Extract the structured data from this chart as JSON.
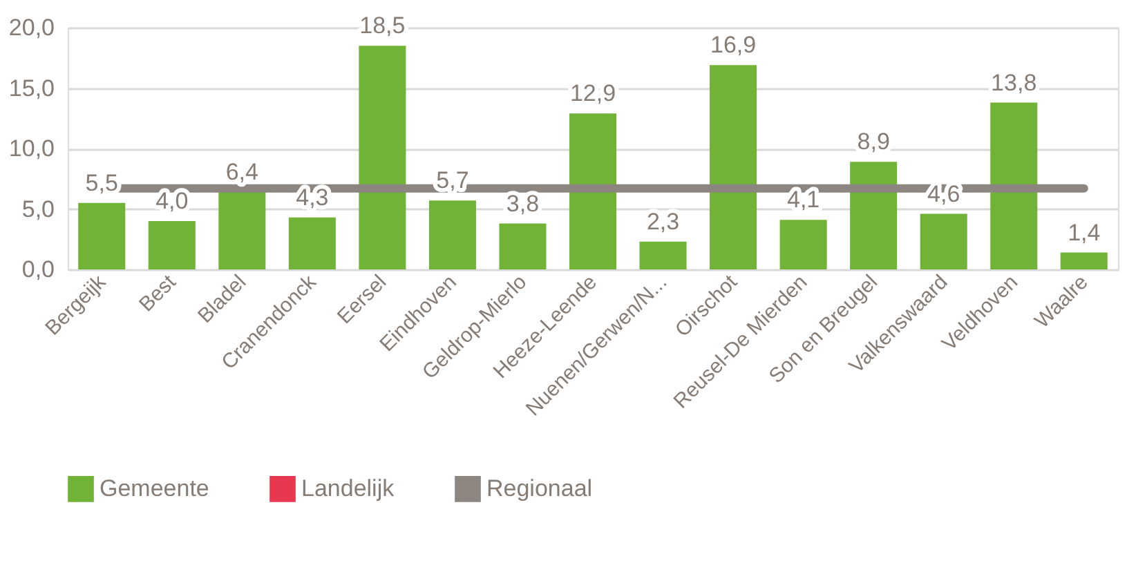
{
  "chart_data": {
    "type": "bar",
    "categories": [
      "Bergeijk",
      "Best",
      "Bladel",
      "Cranendonck",
      "Eersel",
      "Eindhoven",
      "Geldrop-Mierlo",
      "Heeze-Leende",
      "Nuenen/Gerwen/N...",
      "Oirschot",
      "Reusel-De Mierden",
      "Son en Breugel",
      "Valkenswaard",
      "Veldhoven",
      "Waalre"
    ],
    "series": [
      {
        "name": "Gemeente",
        "color": "#70b336",
        "values": [
          5.5,
          4.0,
          6.4,
          4.3,
          18.5,
          5.7,
          3.8,
          12.9,
          2.3,
          16.9,
          4.1,
          8.9,
          4.6,
          13.8,
          1.4
        ],
        "value_labels": [
          "5,5",
          "4,0",
          "6,4",
          "4,3",
          "18,5",
          "5,7",
          "3,8",
          "12,9",
          "2,3",
          "16,9",
          "4,1",
          "8,9",
          "4,6",
          "13,8",
          "1,4"
        ]
      },
      {
        "name": "Landelijk",
        "type": "line",
        "color": "#e8384f",
        "values": [
          null,
          null,
          null,
          null,
          null,
          null,
          null,
          null,
          null,
          null,
          null,
          null,
          null,
          null,
          null
        ]
      },
      {
        "name": "Regionaal",
        "type": "line",
        "color": "#8c8580",
        "values": [
          6.7,
          6.7,
          6.7,
          6.7,
          6.7,
          6.7,
          6.7,
          6.7,
          6.7,
          6.7,
          6.7,
          6.7,
          6.7,
          6.7,
          6.7
        ]
      }
    ],
    "ylim": [
      0,
      20
    ],
    "yticks": [
      {
        "value": 0,
        "label": "0,0"
      },
      {
        "value": 5,
        "label": "5,0"
      },
      {
        "value": 10,
        "label": "10,0"
      },
      {
        "value": 15,
        "label": "15,0"
      },
      {
        "value": 20,
        "label": "20,0"
      }
    ],
    "grid": "y",
    "legend": "bottom"
  }
}
